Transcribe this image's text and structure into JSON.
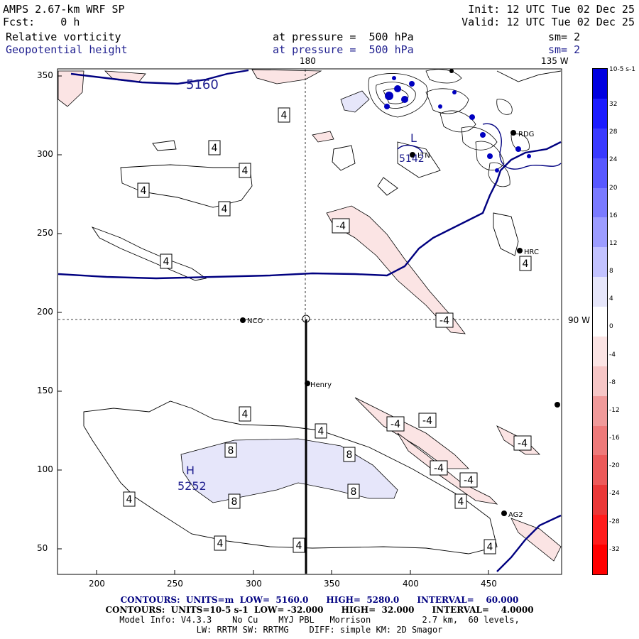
{
  "header": {
    "model": "AMPS 2.67-km WRF SP",
    "init": "Init: 12 UTC Tue 02 Dec 25",
    "fcst": "Fcst:    0 h",
    "valid": "Valid: 12 UTC Tue 02 Dec 25",
    "field1": "Relative vorticity",
    "field2": "Geopotential height",
    "pressure1": "at pressure =  500 hPa",
    "pressure2": "at pressure =  500 hPa",
    "smooth1": "sm= 2",
    "smooth2": "sm= 2"
  },
  "map": {
    "lon_top": "180",
    "lon_top_right": "135 W",
    "lon_right": "90 W",
    "x_ticks": [
      "200",
      "250",
      "300",
      "350",
      "400",
      "450"
    ],
    "y_ticks": [
      "350",
      "300",
      "250",
      "200",
      "150",
      "100",
      "50"
    ],
    "stations": [
      {
        "name": "NCO"
      },
      {
        "name": "Henry"
      },
      {
        "name": "RDG"
      },
      {
        "name": "HRC"
      },
      {
        "name": "AG2"
      },
      {
        "name": "LTN"
      }
    ],
    "contour_labels": [
      "4",
      "4",
      "4",
      "4",
      "4",
      "4",
      "4",
      "4",
      "4",
      "4",
      "4",
      "4",
      "4",
      "4",
      "-4",
      "-4",
      "-4",
      "-4",
      "-4",
      "-4",
      "-4",
      "8",
      "8",
      "8",
      "8"
    ],
    "height_labels": [
      "5160",
      "H",
      "5252",
      "L",
      "5142"
    ],
    "colors": {
      "height_line": "#000080",
      "pos_fill": "#e6e6fa",
      "neg_fill": "#fbe4e4",
      "neg_fill_strong": "#f6c6c6"
    }
  },
  "colorbar": {
    "units": "10-5 s-1",
    "levels": [
      "32",
      "28",
      "24",
      "20",
      "16",
      "12",
      "8",
      "4",
      "0",
      "-4",
      "-8",
      "-12",
      "-16",
      "-20",
      "-24",
      "-28",
      "-32"
    ],
    "colors": [
      "#0000e0",
      "#1c1cff",
      "#3a3aff",
      "#5858ff",
      "#7a7aff",
      "#9c9cff",
      "#c2c2ff",
      "#e6e6fa",
      "#ffffff",
      "#fbe4e4",
      "#f6c6c6",
      "#f09a9a",
      "#ee7a7a",
      "#ec5a5a",
      "#ea3838",
      "#ff1c1c",
      "#ff0000"
    ]
  },
  "footer": {
    "line1": "CONTOURS:  UNITS=m  LOW=  5160.0      HIGH=  5280.0      INTERVAL=    60.000",
    "line2": "CONTOURS:  UNITS=10-5 s-1  LOW= -32.000      HIGH=  32.000      INTERVAL=    4.0000",
    "line3": "Model Info: V4.3.3    No Cu    MYJ PBL   Morrison          2.7 km,  60 levels,",
    "line4": "LW: RRTM SW: RRTMG    DIFF: simple KM: 2D Smagor"
  }
}
